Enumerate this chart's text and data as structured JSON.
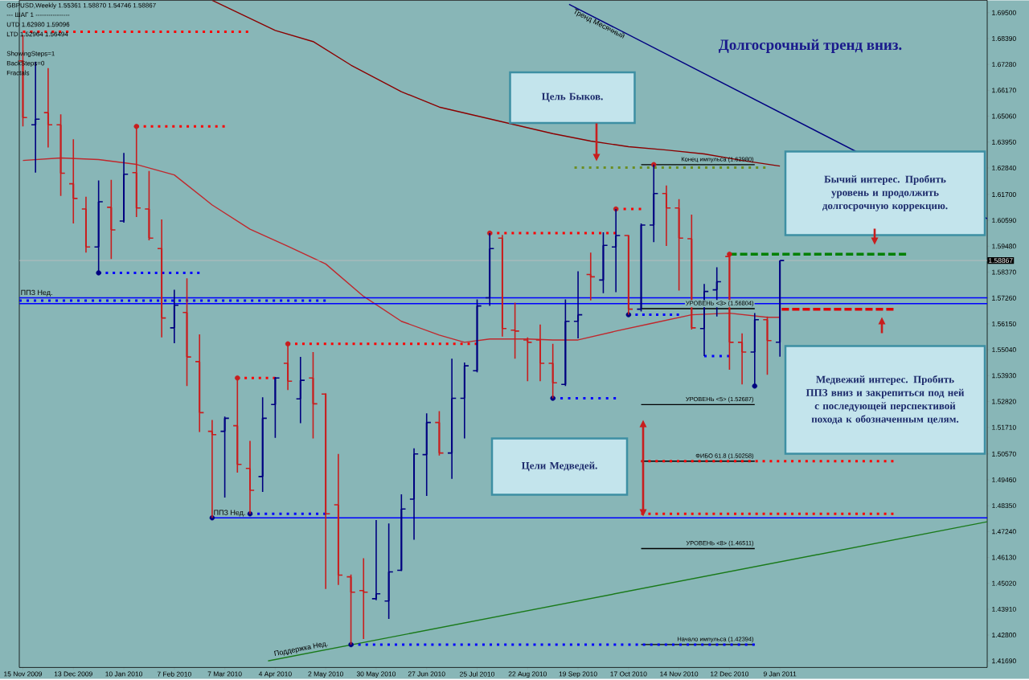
{
  "chart_data": {
    "type": "candlestick",
    "title": "Долгосрочный тренд вниз.",
    "annotations": [
      "GBPUSD,Weekly  1.55361 1.58870 1.54746 1.58867",
      "---   ШАГ 1   ----------------",
      "UTD 1.62980  1.59096",
      "LTD  1.52964  1.56494",
      "ShowingSteps=1",
      "BackSteps=0",
      "Fractals",
      "Цель Быков.",
      "Бычий интерес. Пробить уровень и продолжить долгосрочную коррекцию.",
      "Медвежий интерес. Пробить ППЗ вниз и закрепиться под ней с последующей перспективой похода к обозначенным целям.",
      "Цели Медведей."
    ],
    "x": [
      "2009-11-15",
      "2009-11-22",
      "2009-11-29",
      "2009-12-06",
      "2009-12-13",
      "2009-12-20",
      "2009-12-27",
      "2010-01-03",
      "2010-01-10",
      "2010-01-17",
      "2010-01-24",
      "2010-01-31",
      "2010-02-07",
      "2010-02-14",
      "2010-02-21",
      "2010-02-28",
      "2010-03-07",
      "2010-03-14",
      "2010-03-21",
      "2010-03-28",
      "2010-04-04",
      "2010-04-11",
      "2010-04-18",
      "2010-04-25",
      "2010-05-02",
      "2010-05-09",
      "2010-05-16",
      "2010-05-23",
      "2010-05-30",
      "2010-06-06",
      "2010-06-13",
      "2010-06-20",
      "2010-06-27",
      "2010-07-04",
      "2010-07-11",
      "2010-07-18",
      "2010-07-25",
      "2010-08-01",
      "2010-08-08",
      "2010-08-15",
      "2010-08-22",
      "2010-08-29",
      "2010-09-05",
      "2010-09-12",
      "2010-09-19",
      "2010-09-26",
      "2010-10-03",
      "2010-10-10",
      "2010-10-17",
      "2010-10-24",
      "2010-10-31",
      "2010-11-07",
      "2010-11-14",
      "2010-11-21",
      "2010-11-28",
      "2010-12-05",
      "2010-12-12",
      "2010-12-19",
      "2010-12-26",
      "2011-01-02",
      "2011-01-09"
    ],
    "ohlc": [
      [
        1.6743,
        1.6854,
        1.6462,
        1.65
      ],
      [
        1.6469,
        1.674,
        1.6264,
        1.6493
      ],
      [
        1.6521,
        1.6712,
        1.6372,
        1.6469
      ],
      [
        1.6469,
        1.6514,
        1.6164,
        1.6261
      ],
      [
        1.6216,
        1.6407,
        1.6046,
        1.6153
      ],
      [
        1.6108,
        1.616,
        1.5921,
        1.5945
      ],
      [
        1.5945,
        1.623,
        1.5834,
        1.6139
      ],
      [
        1.6115,
        1.6233,
        1.5893,
        1.6018
      ],
      [
        1.6056,
        1.6348,
        1.6049,
        1.6257
      ],
      [
        1.6264,
        1.6462,
        1.6073,
        1.6112
      ],
      [
        1.6108,
        1.6271,
        1.5973,
        1.5983
      ],
      [
        1.5938,
        1.6063,
        1.5557,
        1.564
      ],
      [
        1.5598,
        1.5761,
        1.5532,
        1.5695
      ],
      [
        1.5664,
        1.581,
        1.5348,
        1.5473
      ],
      [
        1.5453,
        1.557,
        1.5151,
        1.5234
      ],
      [
        1.5154,
        1.5203,
        1.4783,
        1.514
      ],
      [
        1.5154,
        1.5217,
        1.487,
        1.521
      ],
      [
        1.5178,
        1.5383,
        1.4977,
        1.5012
      ],
      [
        1.4995,
        1.5113,
        1.48,
        1.4901
      ],
      [
        1.496,
        1.53,
        1.4894,
        1.521
      ],
      [
        1.5269,
        1.5387,
        1.5126,
        1.5383
      ],
      [
        1.5446,
        1.5529,
        1.5331,
        1.5369
      ],
      [
        1.5293,
        1.5473,
        1.5189,
        1.5373
      ],
      [
        1.5383,
        1.5494,
        1.5123,
        1.5272
      ],
      [
        1.5314,
        1.5317,
        1.4478,
        1.48
      ],
      [
        1.4839,
        1.5057,
        1.4495,
        1.4537
      ],
      [
        1.453,
        1.454,
        1.4239,
        1.4464
      ],
      [
        1.4471,
        1.461,
        1.4263,
        1.4464
      ],
      [
        1.4436,
        1.4773,
        1.4429,
        1.4457
      ],
      [
        1.4426,
        1.4759,
        1.4349,
        1.4551
      ],
      [
        1.4558,
        1.4884,
        1.4554,
        1.4821
      ],
      [
        1.4863,
        1.5081,
        1.4689,
        1.5057
      ],
      [
        1.5054,
        1.5231,
        1.4877,
        1.5192
      ],
      [
        1.5192,
        1.5241,
        1.505,
        1.5061
      ],
      [
        1.5061,
        1.5466,
        1.495,
        1.5296
      ],
      [
        1.5296,
        1.5449,
        1.5123,
        1.5435
      ],
      [
        1.5414,
        1.572,
        1.5407,
        1.5692
      ],
      [
        1.5727,
        1.6004,
        1.5692,
        1.5938
      ],
      [
        1.5983,
        1.5997,
        1.556,
        1.5595
      ],
      [
        1.5588,
        1.5706,
        1.5466,
        1.5584
      ],
      [
        1.5546,
        1.5557,
        1.5369,
        1.5536
      ],
      [
        1.5546,
        1.5612,
        1.5369,
        1.5446
      ],
      [
        1.5446,
        1.5529,
        1.5296,
        1.5362
      ],
      [
        1.5355,
        1.572,
        1.5348,
        1.5626
      ],
      [
        1.5626,
        1.5841,
        1.5553,
        1.5654
      ],
      [
        1.5827,
        1.5921,
        1.5716,
        1.5817
      ],
      [
        1.5803,
        1.6008,
        1.5747,
        1.5952
      ],
      [
        1.5945,
        1.6108,
        1.5751,
        1.5994
      ],
      [
        1.5994,
        1.5997,
        1.5654,
        1.5678
      ],
      [
        1.5678,
        1.6046,
        1.5668,
        1.6039
      ],
      [
        1.6039,
        1.6298,
        1.5966,
        1.6174
      ],
      [
        1.6174,
        1.6209,
        1.5949,
        1.6112
      ],
      [
        1.6112,
        1.615,
        1.5758,
        1.5983
      ],
      [
        1.598,
        1.6084,
        1.5591,
        1.5598
      ],
      [
        1.5595,
        1.5786,
        1.5477,
        1.5754
      ],
      [
        1.5761,
        1.5858,
        1.5647,
        1.5796
      ],
      [
        1.5904,
        1.5914,
        1.5418,
        1.5536
      ],
      [
        1.5536,
        1.5574,
        1.5355,
        1.5494
      ],
      [
        1.5494,
        1.5661,
        1.5348,
        1.5633
      ],
      [
        1.5633,
        1.5647,
        1.5397,
        1.5543
      ],
      [
        1.55361,
        1.5887,
        1.54746,
        1.58867
      ]
    ],
    "colors": [
      "#c81e1e",
      "#000080",
      "#c81e1e",
      "#c81e1e",
      "#c81e1e",
      "#c81e1e",
      "#000080",
      "#c81e1e",
      "#000080",
      "#c81e1e",
      "#c81e1e",
      "#c81e1e",
      "#000080",
      "#c81e1e",
      "#c81e1e",
      "#c81e1e",
      "#000080",
      "#c81e1e",
      "#c81e1e",
      "#000080",
      "#000080",
      "#c81e1e",
      "#000080",
      "#c81e1e",
      "#c81e1e",
      "#c81e1e",
      "#c81e1e",
      "#c81e1e",
      "#000080",
      "#000080",
      "#000080",
      "#000080",
      "#000080",
      "#c81e1e",
      "#000080",
      "#000080",
      "#000080",
      "#000080",
      "#c81e1e",
      "#c81e1e",
      "#c81e1e",
      "#c81e1e",
      "#c81e1e",
      "#000080",
      "#000080",
      "#c81e1e",
      "#000080",
      "#000080",
      "#c81e1e",
      "#000080",
      "#000080",
      "#c81e1e",
      "#c81e1e",
      "#c81e1e",
      "#000080",
      "#000080",
      "#c81e1e",
      "#c81e1e",
      "#000080",
      "#c81e1e",
      "#000080"
    ],
    "xlim": [
      "2009-11-13",
      "2011-05-04"
    ],
    "xticks": [
      {
        "value": "2009-11-15",
        "label": "15 Nov 2009"
      },
      {
        "value": "2009-12-13",
        "label": "13 Dec 2009"
      },
      {
        "value": "2010-01-10",
        "label": "10 Jan 2010"
      },
      {
        "value": "2010-02-07",
        "label": "7 Feb 2010"
      },
      {
        "value": "2010-03-07",
        "label": "7 Mar 2010"
      },
      {
        "value": "2010-04-04",
        "label": "4 Apr 2010"
      },
      {
        "value": "2010-05-02",
        "label": "2 May 2010"
      },
      {
        "value": "2010-05-30",
        "label": "30 May 2010"
      },
      {
        "value": "2010-06-27",
        "label": "27 Jun 2010"
      },
      {
        "value": "2010-07-25",
        "label": "25 Jul 2010"
      },
      {
        "value": "2010-08-22",
        "label": "22 Aug 2010"
      },
      {
        "value": "2010-09-19",
        "label": "19 Sep 2010"
      },
      {
        "value": "2010-10-17",
        "label": "17 Oct 2010"
      },
      {
        "value": "2010-11-14",
        "label": "14 Nov 2010"
      },
      {
        "value": "2010-12-12",
        "label": "12 Dec 2010"
      },
      {
        "value": "2011-01-09",
        "label": "9 Jan 2011"
      }
    ],
    "ylim": [
      1.4141,
      1.7003
    ],
    "yticks": [
      {
        "value": 1.695,
        "label": "1.69500"
      },
      {
        "value": 1.6839,
        "label": "1.68390"
      },
      {
        "value": 1.6728,
        "label": "1.67280"
      },
      {
        "value": 1.6617,
        "label": "1.66170"
      },
      {
        "value": 1.6506,
        "label": "1.65060"
      },
      {
        "value": 1.6395,
        "label": "1.63950"
      },
      {
        "value": 1.6284,
        "label": "1.62840"
      },
      {
        "value": 1.617,
        "label": "1.61700"
      },
      {
        "value": 1.6059,
        "label": "1.60590"
      },
      {
        "value": 1.5948,
        "label": "1.59480"
      },
      {
        "value": 1.5837,
        "label": "1.58370"
      },
      {
        "value": 1.5726,
        "label": "1.57260"
      },
      {
        "value": 1.5615,
        "label": "1.56150"
      },
      {
        "value": 1.5504,
        "label": "1.55040"
      },
      {
        "value": 1.5393,
        "label": "1.53930"
      },
      {
        "value": 1.5282,
        "label": "1.52820"
      },
      {
        "value": 1.5171,
        "label": "1.51710"
      },
      {
        "value": 1.5057,
        "label": "1.50570"
      },
      {
        "value": 1.4946,
        "label": "1.49460"
      },
      {
        "value": 1.4835,
        "label": "1.48350"
      },
      {
        "value": 1.4724,
        "label": "1.47240"
      },
      {
        "value": 1.4613,
        "label": "1.46130"
      },
      {
        "value": 1.4502,
        "label": "1.45020"
      },
      {
        "value": 1.4391,
        "label": "1.43910"
      },
      {
        "value": 1.428,
        "label": "1.42800"
      },
      {
        "value": 1.4169,
        "label": "1.41690"
      }
    ],
    "ref_lines": [
      {
        "axis": "y",
        "value": 1.58867,
        "label": "1.58867",
        "color": "#c0c0c0"
      }
    ],
    "series": [
      {
        "type": "line",
        "color": "#c0282d",
        "x": [
          "2009-11-15",
          "2009-12-06",
          "2009-12-27",
          "2010-01-17",
          "2010-02-07",
          "2010-02-28",
          "2010-03-21",
          "2010-04-11",
          "2010-05-02",
          "2010-05-23",
          "2010-06-13",
          "2010-07-04",
          "2010-07-18",
          "2010-08-01",
          "2010-08-22",
          "2010-09-05",
          "2010-09-19",
          "2010-10-10",
          "2010-10-31",
          "2010-11-21",
          "2010-12-12",
          "2011-01-02",
          "2011-01-09"
        ],
        "values": [
          1.6316,
          1.6327,
          1.632,
          1.6299,
          1.6254,
          1.6125,
          1.6021,
          1.5948,
          1.5872,
          1.5733,
          1.5626,
          1.5567,
          1.5536,
          1.555,
          1.555,
          1.5546,
          1.5546,
          1.5584,
          1.5619,
          1.5654,
          1.5661,
          1.5643,
          1.5643
        ]
      },
      {
        "type": "line",
        "color": "#8b0000",
        "x": [
          "2010-02-28",
          "2010-04-04",
          "2010-04-25",
          "2010-05-16",
          "2010-06-13",
          "2010-07-04",
          "2010-07-25",
          "2010-08-15",
          "2010-09-05",
          "2010-09-26",
          "2010-10-17",
          "2010-11-07",
          "2010-11-28",
          "2010-12-19",
          "2011-01-09"
        ],
        "values": [
          1.7003,
          1.6874,
          1.6826,
          1.6725,
          1.6611,
          1.6545,
          1.6507,
          1.6469,
          1.6431,
          1.6399,
          1.6375,
          1.6361,
          1.6344,
          1.6316,
          1.6292
        ]
      },
      {
        "type": "line",
        "name": "Тренд Месячный",
        "color": "#000080",
        "x": [
          "2010-09-14",
          "2011-05-04"
        ],
        "values": [
          1.6986,
          1.6066
        ]
      },
      {
        "type": "line",
        "name": "Поддержка Нед.",
        "color": "#1a7a1a",
        "x": [
          "2010-03-31",
          "2011-05-04"
        ],
        "values": [
          1.4169,
          1.4766
        ]
      },
      {
        "type": "line",
        "name": "ППЗ Нед.",
        "color": "#0000ff",
        "x": [
          "2009-11-13",
          "2011-05-04"
        ],
        "values": [
          1.5727,
          1.5727
        ]
      },
      {
        "type": "line",
        "color": "#0000ff",
        "x": [
          "2009-11-13",
          "2011-05-04"
        ],
        "values": [
          1.5702,
          1.5702
        ]
      },
      {
        "type": "line",
        "color": "#0000ff",
        "line_style": "dotted",
        "x": [
          "2009-11-13",
          "2010-05-02"
        ],
        "values": [
          1.5715,
          1.5715
        ]
      },
      {
        "type": "line",
        "name": "ППЗ Нед.",
        "color": "#0000ff",
        "x": [
          "2010-02-28",
          "2011-05-04"
        ],
        "values": [
          1.4783,
          1.4783
        ]
      },
      {
        "type": "line",
        "name": "Конец импульса (1.62980)",
        "color": "#000000",
        "x": [
          "2010-10-24",
          "2010-12-26"
        ],
        "values": [
          1.6298,
          1.6298
        ]
      },
      {
        "type": "line",
        "name": "УРОВЕНЬ <3> (1.56804)",
        "color": "#000000",
        "x": [
          "2010-10-24",
          "2010-12-26"
        ],
        "values": [
          1.56804,
          1.56804
        ]
      },
      {
        "type": "line",
        "name": "УРОВЕНЬ <5> (1.52687)",
        "color": "#000000",
        "x": [
          "2010-10-24",
          "2010-12-26"
        ],
        "values": [
          1.52687,
          1.52687
        ]
      },
      {
        "type": "line",
        "name": "ФИБО 61.8 (1.50258)",
        "color": "#000000",
        "x": [
          "2010-10-24",
          "2010-12-26"
        ],
        "values": [
          1.50258,
          1.50258
        ]
      },
      {
        "type": "line",
        "name": "УРОВЕНЬ <8> (1.46511)",
        "color": "#000000",
        "x": [
          "2010-10-24",
          "2010-12-26"
        ],
        "values": [
          1.46511,
          1.46511
        ]
      },
      {
        "type": "line",
        "name": "Начало импульса (1.42394)",
        "color": "#000000",
        "x": [
          "2010-10-24",
          "2010-12-26"
        ],
        "values": [
          1.42394,
          1.42394
        ]
      },
      {
        "type": "line",
        "color": "#ff0000",
        "line_style": "dotted",
        "x": [
          "2009-11-15",
          "2010-03-20"
        ],
        "values": [
          1.6868,
          1.6868
        ]
      },
      {
        "type": "line",
        "color": "#ff0000",
        "line_style": "dotted",
        "x": [
          "2010-01-17",
          "2010-03-07"
        ],
        "values": [
          1.6462,
          1.6462
        ]
      },
      {
        "type": "line",
        "color": "#0000ff",
        "line_style": "dotted",
        "x": [
          "2009-12-27",
          "2010-02-21"
        ],
        "values": [
          1.5834,
          1.5834
        ]
      },
      {
        "type": "line",
        "color": "#ff0000",
        "line_style": "dotted",
        "x": [
          "2010-03-14",
          "2010-04-04"
        ],
        "values": [
          1.5383,
          1.5383
        ]
      },
      {
        "type": "line",
        "color": "#ff0000",
        "line_style": "dotted",
        "x": [
          "2010-04-11",
          "2010-07-25"
        ],
        "values": [
          1.5529,
          1.5529
        ]
      },
      {
        "type": "line",
        "color": "#0000ff",
        "line_style": "dotted",
        "x": [
          "2010-03-21",
          "2010-05-02"
        ],
        "values": [
          1.48,
          1.48
        ]
      },
      {
        "type": "line",
        "color": "#0000ff",
        "line_style": "dotted",
        "x": [
          "2010-05-16",
          "2010-12-26"
        ],
        "values": [
          1.4239,
          1.4239
        ]
      },
      {
        "type": "line",
        "color": "#ff0000",
        "line_style": "dotted",
        "x": [
          "2010-08-01",
          "2010-10-10"
        ],
        "values": [
          1.6004,
          1.6004
        ]
      },
      {
        "type": "line",
        "color": "#0000ff",
        "line_style": "dotted",
        "x": [
          "2010-09-05",
          "2010-10-10"
        ],
        "values": [
          1.5296,
          1.5296
        ]
      },
      {
        "type": "line",
        "color": "#ff0000",
        "line_style": "dotted",
        "x": [
          "2010-10-10",
          "2010-10-24"
        ],
        "values": [
          1.6108,
          1.6108
        ]
      },
      {
        "type": "line",
        "color": "#0000ff",
        "line_style": "dotted",
        "x": [
          "2010-10-17",
          "2010-11-14"
        ],
        "values": [
          1.5654,
          1.5654
        ]
      },
      {
        "type": "line",
        "color": "#0000ff",
        "line_style": "dotted",
        "x": [
          "2010-11-28",
          "2010-12-12"
        ],
        "values": [
          1.5477,
          1.5477
        ]
      },
      {
        "type": "line",
        "color": "#008000",
        "line_style": "dashed",
        "x": [
          "2010-12-12",
          "2011-03-20"
        ],
        "values": [
          1.5914,
          1.5914
        ]
      },
      {
        "type": "line",
        "color": "#6b8e23",
        "line_style": "dotted",
        "x": [
          "2010-09-17",
          "2011-01-01"
        ],
        "values": [
          1.6285,
          1.6285
        ]
      },
      {
        "type": "line",
        "color": "#e00000",
        "line_style": "dashed",
        "x": [
          "2011-01-10",
          "2011-03-13"
        ],
        "values": [
          1.5678,
          1.5678
        ]
      },
      {
        "type": "line",
        "color": "#ff0000",
        "line_style": "dotted",
        "x": [
          "2010-10-24",
          "2011-03-13"
        ],
        "values": [
          1.5026,
          1.5026
        ]
      },
      {
        "type": "line",
        "color": "#ff0000",
        "line_style": "dotted",
        "x": [
          "2010-10-24",
          "2011-03-13"
        ],
        "values": [
          1.48,
          1.48
        ]
      },
      {
        "type": "scatter",
        "marker": "circle",
        "color": "#c81e1e",
        "x": [
          "2010-01-17",
          "2010-03-14",
          "2010-04-11",
          "2010-08-01",
          "2010-10-10",
          "2010-10-31",
          "2010-12-12"
        ],
        "values": [
          1.6462,
          1.5383,
          1.5529,
          1.6004,
          1.6108,
          1.6298,
          1.5914
        ]
      },
      {
        "type": "scatter",
        "marker": "circle",
        "color": "#000080",
        "x": [
          "2009-12-27",
          "2010-02-28",
          "2010-03-21",
          "2010-05-16",
          "2010-09-05",
          "2010-10-17",
          "2010-12-26"
        ],
        "values": [
          1.5834,
          1.4783,
          1.48,
          1.4239,
          1.5296,
          1.5654,
          1.5348
        ]
      }
    ]
  }
}
